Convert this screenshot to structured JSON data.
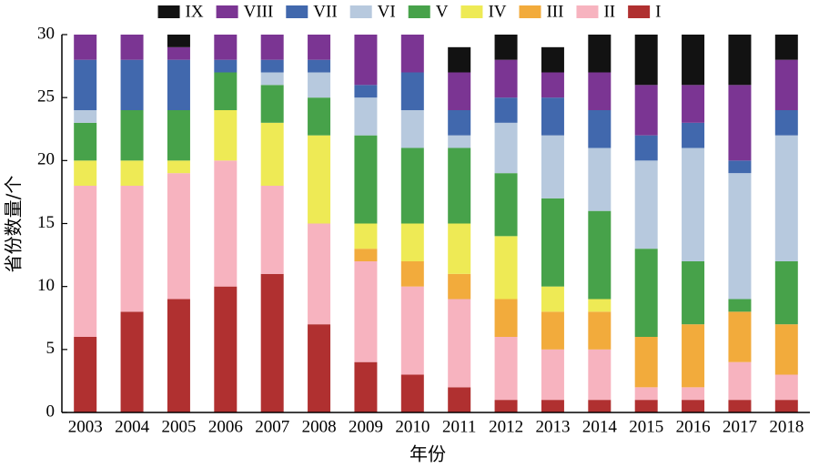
{
  "chart_data": {
    "type": "bar",
    "stacked": true,
    "xlabel": "年份",
    "ylabel": "省份数量/个",
    "ylim": [
      0,
      30
    ],
    "yticks": [
      0,
      5,
      10,
      15,
      20,
      25,
      30
    ],
    "grid": false,
    "legend_position": "top",
    "categories": [
      "2003",
      "2004",
      "2005",
      "2006",
      "2007",
      "2008",
      "2009",
      "2010",
      "2011",
      "2012",
      "2013",
      "2014",
      "2015",
      "2016",
      "2017",
      "2018"
    ],
    "series": [
      {
        "name": "I",
        "color": "#b03030",
        "values": [
          6,
          8,
          9,
          10,
          11,
          7,
          4,
          3,
          2,
          1,
          1,
          1,
          1,
          1,
          1,
          1
        ]
      },
      {
        "name": "II",
        "color": "#f7b3bf",
        "values": [
          12,
          10,
          10,
          10,
          7,
          8,
          8,
          7,
          7,
          5,
          4,
          4,
          1,
          1,
          3,
          2
        ]
      },
      {
        "name": "III",
        "color": "#f2ab3c",
        "values": [
          0,
          0,
          0,
          0,
          0,
          0,
          1,
          2,
          2,
          3,
          3,
          3,
          4,
          5,
          4,
          4
        ]
      },
      {
        "name": "IV",
        "color": "#eeea55",
        "values": [
          2,
          2,
          1,
          4,
          5,
          7,
          2,
          3,
          4,
          5,
          2,
          1,
          0,
          0,
          0,
          0
        ]
      },
      {
        "name": "V",
        "color": "#47a24a",
        "values": [
          3,
          4,
          4,
          3,
          3,
          3,
          7,
          6,
          6,
          5,
          7,
          7,
          7,
          5,
          1,
          5
        ]
      },
      {
        "name": "VI",
        "color": "#b7c9de",
        "values": [
          1,
          0,
          0,
          0,
          1,
          2,
          3,
          3,
          1,
          4,
          5,
          5,
          7,
          9,
          10,
          10
        ]
      },
      {
        "name": "VII",
        "color": "#4168ad",
        "values": [
          4,
          4,
          4,
          1,
          1,
          1,
          1,
          3,
          2,
          2,
          3,
          3,
          2,
          2,
          1,
          2
        ]
      },
      {
        "name": "VIII",
        "color": "#7b3593",
        "values": [
          2,
          2,
          1,
          2,
          2,
          2,
          4,
          3,
          3,
          3,
          2,
          3,
          4,
          3,
          6,
          4
        ]
      },
      {
        "name": "IX",
        "color": "#121212",
        "values": [
          0,
          0,
          1,
          0,
          0,
          0,
          0,
          0,
          2,
          2,
          2,
          3,
          4,
          4,
          4,
          2
        ]
      }
    ],
    "legend_order": [
      "IX",
      "VIII",
      "VII",
      "VI",
      "V",
      "IV",
      "III",
      "II",
      "I"
    ]
  }
}
